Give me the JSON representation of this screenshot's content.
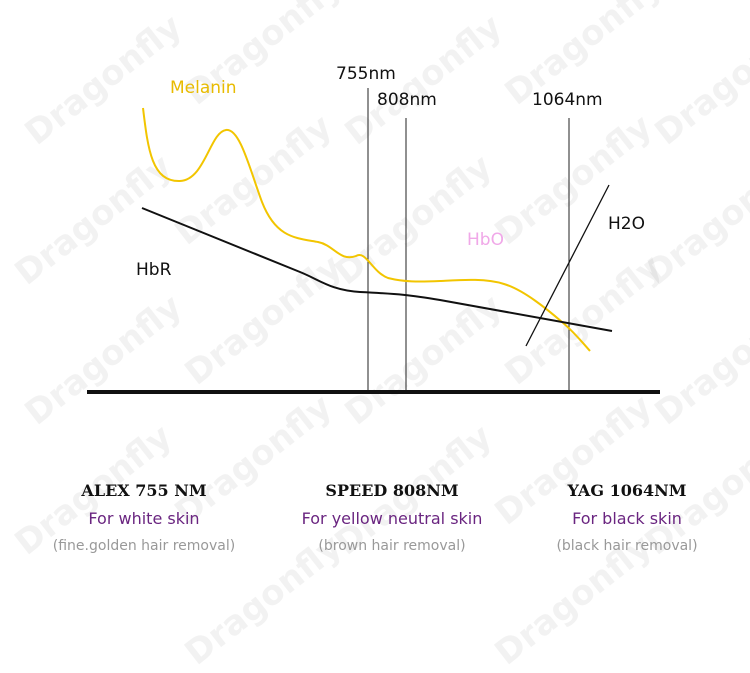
{
  "watermark_text": "Dragonfly",
  "colors": {
    "melanin": "#f2c500",
    "hbo": "#f0a8e8",
    "hbr": "#111111",
    "skin_text": "#6a2580",
    "hair_text": "#999999"
  },
  "diagram": {
    "wavelengths": [
      "755nm",
      "808nm",
      "1064nm"
    ],
    "curves": {
      "melanin": "Melanin",
      "hbo": "HbO",
      "hbr": "HbR",
      "h2o": "H2O"
    }
  },
  "lasers": [
    {
      "name": "ALEX 755 NM",
      "skin": "For white skin",
      "hair": "(fine.golden hair removal)"
    },
    {
      "name": "SPEED 808NM",
      "skin": "For yellow neutral skin",
      "hair": "(brown hair removal)"
    },
    {
      "name": "YAG 1064NM",
      "skin": "For black skin",
      "hair": "(black hair removal)"
    }
  ]
}
